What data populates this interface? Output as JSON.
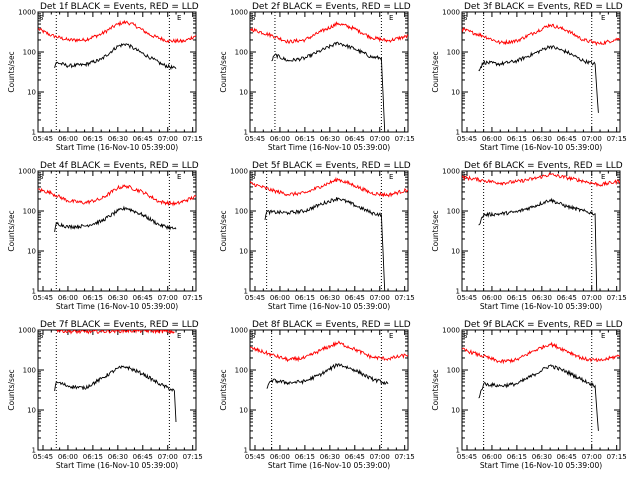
{
  "figure": {
    "background": "#ffffff",
    "axis_color": "#000000",
    "events_color": "#000000",
    "lld_color": "#ff0000"
  },
  "chart_data": [
    {
      "type": "line",
      "title": "Det 1f BLACK = Events, RED = LLD",
      "xlabel": "Start Time (16-Nov-10 05:39:00)",
      "ylabel": "Counts/sec",
      "yscale": "log",
      "ylim": [
        1,
        1000
      ],
      "xlim": [
        "05:42",
        "07:17"
      ],
      "xticks": [
        "05:45",
        "06:00",
        "06:15",
        "06:30",
        "06:45",
        "07:00",
        "07:15"
      ],
      "yticks": [
        "1",
        "10",
        "100",
        "1000"
      ],
      "markers": [
        {
          "label": "S",
          "time": "05:42"
        },
        {
          "label": "E",
          "time": "07:05"
        }
      ],
      "vlines": [
        "05:53",
        "07:01"
      ],
      "series": [
        {
          "name": "LLD",
          "color": "#ff0000",
          "x": [
            "05:42",
            "05:50",
            "06:00",
            "06:10",
            "06:20",
            "06:30",
            "06:35",
            "06:40",
            "06:50",
            "07:00",
            "07:10",
            "07:17"
          ],
          "y": [
            380,
            260,
            200,
            200,
            280,
            500,
            560,
            470,
            260,
            190,
            185,
            260
          ]
        },
        {
          "name": "Events",
          "color": "#000000",
          "x": [
            "05:52",
            "05:53",
            "06:00",
            "06:10",
            "06:20",
            "06:30",
            "06:35",
            "06:40",
            "06:50",
            "06:57",
            "07:05"
          ],
          "y": [
            40,
            55,
            45,
            48,
            65,
            140,
            160,
            120,
            70,
            48,
            38
          ]
        }
      ]
    },
    {
      "type": "line",
      "title": "Det 2f BLACK = Events, RED = LLD",
      "xlabel": "Start Time (16-Nov-10 05:39:00)",
      "ylabel": "Counts/sec",
      "yscale": "log",
      "ylim": [
        1,
        1000
      ],
      "xlim": [
        "05:42",
        "07:17"
      ],
      "xticks": [
        "05:45",
        "06:00",
        "06:15",
        "06:30",
        "06:45",
        "07:00",
        "07:15"
      ],
      "yticks": [
        "1",
        "10",
        "100",
        "1000"
      ],
      "markers": [
        {
          "label": "S",
          "time": "05:42"
        },
        {
          "label": "E",
          "time": "07:05"
        }
      ],
      "vlines": [
        "05:57",
        "07:01"
      ],
      "series": [
        {
          "name": "LLD",
          "color": "#ff0000",
          "x": [
            "05:42",
            "05:55",
            "06:05",
            "06:15",
            "06:25",
            "06:35",
            "06:45",
            "06:55",
            "07:05",
            "07:17"
          ],
          "y": [
            380,
            260,
            180,
            200,
            330,
            520,
            380,
            230,
            190,
            250
          ]
        },
        {
          "name": "Events",
          "color": "#000000",
          "x": [
            "05:55",
            "05:57",
            "06:05",
            "06:15",
            "06:25",
            "06:35",
            "06:45",
            "06:55",
            "07:01",
            "07:03"
          ],
          "y": [
            60,
            85,
            60,
            70,
            110,
            170,
            120,
            75,
            70,
            1
          ]
        }
      ]
    },
    {
      "type": "line",
      "title": "Det 3f BLACK = Events, RED = LLD",
      "xlabel": "Start Time (16-Nov-10 05:39:00)",
      "ylabel": "Counts/sec",
      "yscale": "log",
      "ylim": [
        1,
        1000
      ],
      "xlim": [
        "05:42",
        "07:17"
      ],
      "xticks": [
        "05:45",
        "06:00",
        "06:15",
        "06:30",
        "06:45",
        "07:00",
        "07:15"
      ],
      "yticks": [
        "1",
        "10",
        "100",
        "1000"
      ],
      "markers": [
        {
          "label": "S",
          "time": "05:42"
        },
        {
          "label": "E",
          "time": "07:05"
        }
      ],
      "vlines": [
        "05:55",
        "07:00"
      ],
      "series": [
        {
          "name": "LLD",
          "color": "#ff0000",
          "x": [
            "05:42",
            "05:55",
            "06:05",
            "06:15",
            "06:25",
            "06:35",
            "06:45",
            "06:55",
            "07:05",
            "07:17"
          ],
          "y": [
            370,
            250,
            170,
            190,
            300,
            480,
            350,
            200,
            160,
            220
          ]
        },
        {
          "name": "Events",
          "color": "#000000",
          "x": [
            "05:52",
            "05:55",
            "06:05",
            "06:15",
            "06:25",
            "06:35",
            "06:45",
            "06:55",
            "07:02",
            "07:04"
          ],
          "y": [
            35,
            55,
            50,
            60,
            90,
            140,
            100,
            60,
            50,
            3
          ]
        }
      ]
    },
    {
      "type": "line",
      "title": "Det 4f BLACK = Events, RED = LLD",
      "xlabel": "Start Time (16-Nov-10 05:39:00)",
      "ylabel": "Counts/sec",
      "yscale": "log",
      "ylim": [
        1,
        1000
      ],
      "xlim": [
        "05:42",
        "07:17"
      ],
      "xticks": [
        "05:45",
        "06:00",
        "06:15",
        "06:30",
        "06:45",
        "07:00",
        "07:15"
      ],
      "yticks": [
        "1",
        "10",
        "100",
        "1000"
      ],
      "markers": [
        {
          "label": "S",
          "time": "05:42"
        },
        {
          "label": "E",
          "time": "07:05"
        }
      ],
      "vlines": [
        "05:53",
        "07:01"
      ],
      "series": [
        {
          "name": "LLD",
          "color": "#ff0000",
          "x": [
            "05:42",
            "05:50",
            "06:00",
            "06:10",
            "06:20",
            "06:30",
            "06:35",
            "06:45",
            "06:55",
            "07:05",
            "07:17"
          ],
          "y": [
            350,
            280,
            180,
            160,
            200,
            380,
            420,
            300,
            170,
            150,
            230
          ]
        },
        {
          "name": "Events",
          "color": "#000000",
          "x": [
            "05:52",
            "05:53",
            "06:00",
            "06:10",
            "06:20",
            "06:30",
            "06:35",
            "06:45",
            "06:55",
            "07:05"
          ],
          "y": [
            30,
            50,
            40,
            42,
            55,
            100,
            120,
            80,
            45,
            35
          ]
        }
      ]
    },
    {
      "type": "line",
      "title": "Det 5f BLACK = Events, RED = LLD",
      "xlabel": "Start Time (16-Nov-10 05:39:00)",
      "ylabel": "Counts/sec",
      "yscale": "log",
      "ylim": [
        1,
        1000
      ],
      "xlim": [
        "05:42",
        "07:17"
      ],
      "xticks": [
        "05:45",
        "06:00",
        "06:15",
        "06:30",
        "06:45",
        "07:00",
        "07:15"
      ],
      "yticks": [
        "1",
        "10",
        "100",
        "1000"
      ],
      "markers": [
        {
          "label": "S",
          "time": "05:42"
        },
        {
          "label": "E",
          "time": "07:05"
        }
      ],
      "vlines": [
        "05:52",
        "07:01"
      ],
      "series": [
        {
          "name": "LLD",
          "color": "#ff0000",
          "x": [
            "05:42",
            "05:55",
            "06:05",
            "06:15",
            "06:25",
            "06:35",
            "06:45",
            "06:55",
            "07:05",
            "07:17"
          ],
          "y": [
            500,
            330,
            260,
            280,
            420,
            620,
            430,
            280,
            250,
            340
          ]
        },
        {
          "name": "Events",
          "color": "#000000",
          "x": [
            "05:51",
            "05:52",
            "06:05",
            "06:15",
            "06:25",
            "06:35",
            "06:45",
            "06:55",
            "07:01",
            "07:03"
          ],
          "y": [
            60,
            95,
            90,
            100,
            150,
            210,
            140,
            90,
            80,
            1
          ]
        }
      ]
    },
    {
      "type": "line",
      "title": "Det 6f BLACK = Events, RED = LLD",
      "xlabel": "Start Time (16-Nov-10 05:39:00)",
      "ylabel": "Counts/sec",
      "yscale": "log",
      "ylim": [
        1,
        1000
      ],
      "xlim": [
        "05:42",
        "07:17"
      ],
      "xticks": [
        "05:45",
        "06:00",
        "06:15",
        "06:30",
        "06:45",
        "07:00",
        "07:15"
      ],
      "yticks": [
        "1",
        "10",
        "100",
        "1000"
      ],
      "markers": [
        {
          "label": "S",
          "time": "05:42"
        },
        {
          "label": "E",
          "time": "07:05"
        }
      ],
      "vlines": [
        "05:55",
        "07:00"
      ],
      "series": [
        {
          "name": "LLD",
          "color": "#ff0000",
          "x": [
            "05:42",
            "05:55",
            "06:05",
            "06:15",
            "06:25",
            "06:35",
            "06:45",
            "06:55",
            "07:05",
            "07:17"
          ],
          "y": [
            700,
            580,
            500,
            540,
            640,
            820,
            680,
            560,
            450,
            560
          ]
        },
        {
          "name": "Events",
          "color": "#000000",
          "x": [
            "05:52",
            "05:55",
            "06:05",
            "06:15",
            "06:25",
            "06:35",
            "06:45",
            "06:55",
            "07:02",
            "07:03"
          ],
          "y": [
            45,
            80,
            85,
            95,
            130,
            190,
            130,
            100,
            85,
            1
          ]
        }
      ]
    },
    {
      "type": "line",
      "title": "Det 7f BLACK = Events, RED = LLD",
      "xlabel": "Start Time (16-Nov-10 05:39:00)",
      "ylabel": "Counts/sec",
      "yscale": "log",
      "ylim": [
        1,
        1000
      ],
      "xlim": [
        "05:42",
        "07:17"
      ],
      "xticks": [
        "05:45",
        "06:00",
        "06:15",
        "06:30",
        "06:45",
        "07:00",
        "07:15"
      ],
      "yticks": [
        "1",
        "10",
        "100",
        "1000"
      ],
      "markers": [
        {
          "label": "S",
          "time": "05:42"
        },
        {
          "label": "E",
          "time": "07:05"
        }
      ],
      "vlines": [
        "05:53",
        "07:01"
      ],
      "series": [
        {
          "name": "LLD",
          "color": "#ff0000",
          "x": [
            "05:53",
            "06:00",
            "06:10",
            "06:20",
            "06:30",
            "06:40",
            "06:50",
            "07:00",
            "07:04"
          ],
          "y": [
            1000,
            920,
            900,
            920,
            950,
            960,
            940,
            920,
            900
          ]
        },
        {
          "name": "Events",
          "color": "#000000",
          "x": [
            "05:52",
            "05:53",
            "06:00",
            "06:10",
            "06:20",
            "06:30",
            "06:35",
            "06:45",
            "06:55",
            "07:04",
            "07:05"
          ],
          "y": [
            30,
            50,
            40,
            35,
            60,
            110,
            120,
            80,
            45,
            30,
            5
          ]
        }
      ]
    },
    {
      "type": "line",
      "title": "Det 8f BLACK = Events, RED = LLD",
      "xlabel": "Start Time (16-Nov-10 05:39:00)",
      "ylabel": "Counts/sec",
      "yscale": "log",
      "ylim": [
        1,
        1000
      ],
      "xlim": [
        "05:42",
        "07:17"
      ],
      "xticks": [
        "05:45",
        "06:00",
        "06:15",
        "06:30",
        "06:45",
        "07:00",
        "07:15"
      ],
      "yticks": [
        "1",
        "10",
        "100",
        "1000"
      ],
      "markers": [
        {
          "label": "S",
          "time": "05:42"
        },
        {
          "label": "E",
          "time": "07:05"
        }
      ],
      "vlines": [
        "05:55",
        "07:01"
      ],
      "series": [
        {
          "name": "LLD",
          "color": "#ff0000",
          "x": [
            "05:42",
            "05:55",
            "06:05",
            "06:15",
            "06:25",
            "06:35",
            "06:45",
            "06:55",
            "07:05",
            "07:17"
          ],
          "y": [
            360,
            240,
            180,
            200,
            320,
            480,
            330,
            210,
            190,
            240
          ]
        },
        {
          "name": "Events",
          "color": "#000000",
          "x": [
            "05:52",
            "05:55",
            "06:05",
            "06:15",
            "06:25",
            "06:35",
            "06:45",
            "06:55",
            "07:05"
          ],
          "y": [
            35,
            55,
            48,
            52,
            80,
            140,
            100,
            60,
            45
          ]
        }
      ]
    },
    {
      "type": "line",
      "title": "Det 9f BLACK = Events, RED = LLD",
      "xlabel": "Start Time (16-Nov-10 05:39:00)",
      "ylabel": "Counts/sec",
      "yscale": "log",
      "ylim": [
        1,
        1000
      ],
      "xlim": [
        "05:42",
        "07:17"
      ],
      "xticks": [
        "05:45",
        "06:00",
        "06:15",
        "06:30",
        "06:45",
        "07:00",
        "07:15"
      ],
      "yticks": [
        "1",
        "10",
        "100",
        "1000"
      ],
      "markers": [
        {
          "label": "S",
          "time": "05:42"
        },
        {
          "label": "E",
          "time": "07:05"
        }
      ],
      "vlines": [
        "05:55",
        "07:00"
      ],
      "series": [
        {
          "name": "LLD",
          "color": "#ff0000",
          "x": [
            "05:42",
            "05:55",
            "06:05",
            "06:15",
            "06:25",
            "06:35",
            "06:45",
            "06:55",
            "07:05",
            "07:17"
          ],
          "y": [
            330,
            220,
            160,
            180,
            300,
            450,
            300,
            190,
            170,
            230
          ]
        },
        {
          "name": "Events",
          "color": "#000000",
          "x": [
            "05:52",
            "05:55",
            "06:05",
            "06:15",
            "06:25",
            "06:35",
            "06:45",
            "06:55",
            "07:02",
            "07:04"
          ],
          "y": [
            20,
            45,
            40,
            45,
            75,
            130,
            90,
            55,
            40,
            3
          ]
        }
      ]
    }
  ]
}
